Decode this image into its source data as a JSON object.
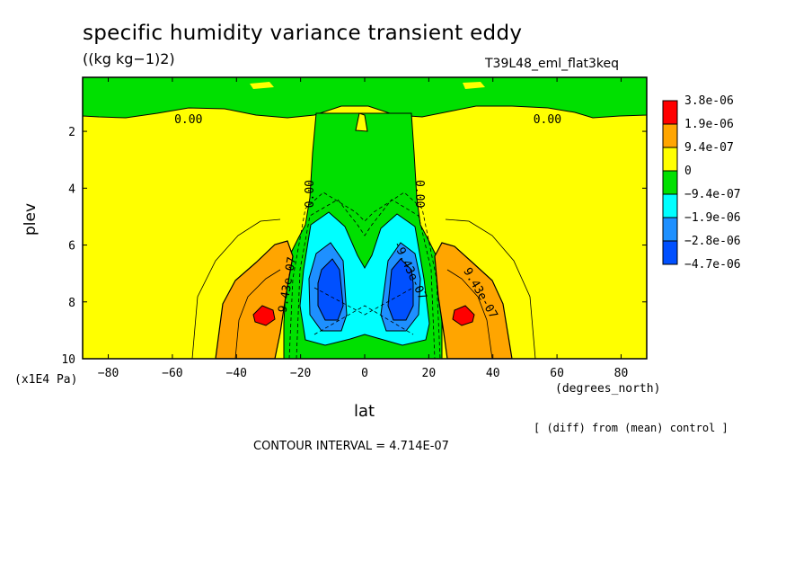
{
  "title": "specific humidity variance transient eddy",
  "units": "((kg kg−1)2)",
  "run_id": "T39L48_eml_flat3keq",
  "diff_note": "[ (diff) from (mean) control ]",
  "contour_interval": "CONTOUR INTERVAL = 4.714E-07",
  "chart_data": {
    "type": "heatmap",
    "xlabel": "lat",
    "x_unit": "(degrees_north)",
    "ylabel": "plev",
    "y_unit": "(x1E4 Pa)",
    "xlim": [
      -88,
      88
    ],
    "ylim": [
      10,
      0.1
    ],
    "x_ticks": [
      -80,
      -60,
      -40,
      -20,
      0,
      20,
      40,
      60,
      80
    ],
    "x_tick_labels": [
      "-80",
      "-60",
      "-40",
      "-20",
      "0",
      "20",
      "40",
      "60",
      "80"
    ],
    "y_ticks": [
      2,
      4,
      6,
      8,
      10
    ],
    "y_tick_labels": [
      "2",
      "4",
      "6",
      "8",
      "10"
    ],
    "legend": [
      {
        "label": "3.8e-06",
        "color": "#ff0000"
      },
      {
        "label": "1.9e-06",
        "color": "#ffa500"
      },
      {
        "label": "9.4e-07",
        "color": "#ffff00"
      },
      {
        "label": "0",
        "color": "#00e000"
      },
      {
        "label": "−9.4e-07",
        "color": "#00ffff"
      },
      {
        "label": "−1.9e-06",
        "color": "#1e90ff"
      },
      {
        "label": "−2.8e-06",
        "color": "#0050ff"
      },
      {
        "label": "−4.7e-06",
        "color": null
      }
    ],
    "contour_labels": [
      {
        "text": "0.00",
        "lat": -55,
        "plev": 1.6,
        "angle": 0
      },
      {
        "text": "0.00",
        "lat": 57,
        "plev": 1.6,
        "angle": 0
      },
      {
        "text": "0.00",
        "lat": -17,
        "plev": 4.2,
        "angle": -90
      },
      {
        "text": "0.00",
        "lat": 17,
        "plev": 4.2,
        "angle": 90
      },
      {
        "text": "9.43e-07",
        "lat": -24,
        "plev": 7.4,
        "angle": -80
      },
      {
        "text": "9.43e-07",
        "lat": 36,
        "plev": 7.7,
        "angle": 60
      },
      {
        "text": "-9.43e-07",
        "lat": 14,
        "plev": 6.9,
        "angle": 65
      }
    ],
    "features": [
      {
        "name": "upper-moist-band",
        "type": "band",
        "value_class": "0 to -9.4e-07",
        "plev": [
          0.1,
          1.5
        ]
      },
      {
        "name": "tropical-dry-column",
        "type": "region",
        "value_class": "0 to -9.4e-07",
        "lat": [
          -20,
          20
        ],
        "plev": [
          0.1,
          9.5
        ]
      },
      {
        "name": "sh-dry-core",
        "type": "minimum",
        "lat": -11,
        "plev": 7.8,
        "value_class": "-2.8e-06 to -4.7e-06"
      },
      {
        "name": "nh-dry-core",
        "type": "minimum",
        "lat": 11,
        "plev": 7.8,
        "value_class": "-2.8e-06 to -4.7e-06"
      },
      {
        "name": "sh-subtropical-max",
        "type": "maximum",
        "lat": -32,
        "plev": 8.5,
        "value_class": "3.8e-06"
      },
      {
        "name": "nh-subtropical-max",
        "type": "maximum",
        "lat": 32,
        "plev": 8.5,
        "value_class": "3.8e-06"
      }
    ]
  }
}
